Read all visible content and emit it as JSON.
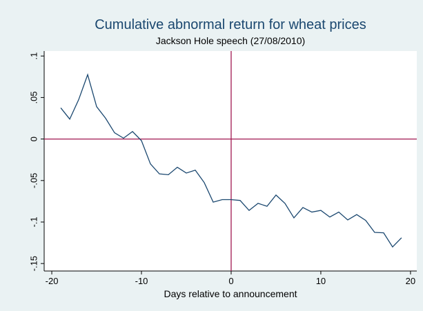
{
  "chart_data": {
    "type": "line",
    "title": "Cumulative abnormal return for wheat prices",
    "subtitle": "Jackson Hole speech (27/08/2010)",
    "x_label": "Days relative to announcement",
    "x": [
      -19,
      -18,
      -17,
      -16,
      -15,
      -14,
      -13,
      -12,
      -11,
      -10,
      -9,
      -8,
      -7,
      -6,
      -5,
      -4,
      -3,
      -2,
      -1,
      0,
      1,
      2,
      3,
      4,
      5,
      6,
      7,
      8,
      9,
      10,
      11,
      12,
      13,
      14,
      15,
      16,
      17,
      18,
      19
    ],
    "series": [
      {
        "color": "#1a476f",
        "values": [
          0.0375,
          0.024,
          0.0475,
          0.0775,
          0.039,
          0.025,
          0.0075,
          0.001,
          0.009,
          -0.002,
          -0.03,
          -0.042,
          -0.043,
          -0.034,
          -0.041,
          -0.0375,
          -0.0525,
          -0.076,
          -0.073,
          -0.073,
          -0.074,
          -0.086,
          -0.0775,
          -0.081,
          -0.0675,
          -0.0775,
          -0.095,
          -0.0825,
          -0.088,
          -0.086,
          -0.094,
          -0.088,
          -0.0975,
          -0.091,
          -0.098,
          -0.1125,
          -0.113,
          -0.13,
          -0.119
        ]
      }
    ],
    "xlim": [
      -20.85,
      20.7
    ],
    "ylim": [
      -0.159,
      0.106
    ],
    "xticks": [
      -20,
      -10,
      0,
      10,
      20
    ],
    "yticks": [
      {
        "value": -0.15,
        "label": "-.15"
      },
      {
        "value": -0.1,
        "label": "-.1"
      },
      {
        "value": -0.05,
        "label": "-.05"
      },
      0,
      {
        "value": 0.05,
        "label": ".05"
      },
      {
        "value": 0.1,
        "label": ".1"
      }
    ],
    "xline": 0,
    "yline": 0,
    "reference_color": "#a0164f"
  }
}
